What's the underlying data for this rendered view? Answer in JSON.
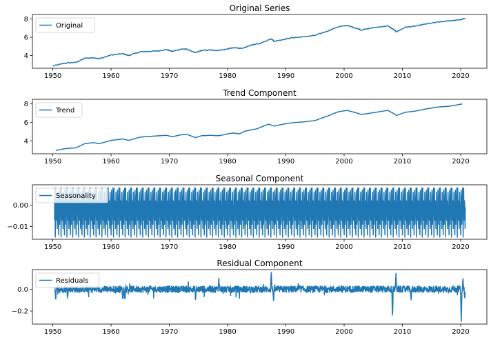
{
  "chart_data": [
    {
      "type": "line",
      "title": "Original Series",
      "xlabel": "",
      "ylabel": "",
      "xlim": [
        1946.5,
        2024.5
      ],
      "ylim": [
        2.6,
        8.5
      ],
      "xticks": [
        1950,
        1960,
        1970,
        1980,
        1990,
        2000,
        2010,
        2020
      ],
      "yticks": [
        4,
        6,
        8
      ],
      "ytick_labels": [
        "4",
        "6",
        "8"
      ],
      "legend": "upper-left",
      "grid": false,
      "series": [
        {
          "name": "Original",
          "color": "#1f77b4",
          "x": [
            1950.0,
            1952.0,
            1954.0,
            1955.5,
            1957.0,
            1958.0,
            1960.0,
            1962.0,
            1963.0,
            1965.0,
            1966.5,
            1968.0,
            1969.5,
            1970.5,
            1972.0,
            1973.0,
            1974.5,
            1975.5,
            1977.0,
            1978.0,
            1979.5,
            1980.5,
            1981.5,
            1982.5,
            1984.0,
            1985.5,
            1987.5,
            1988.0,
            1989.5,
            1991.0,
            1993.0,
            1995.0,
            1997.0,
            1999.0,
            2000.5,
            2002.0,
            2003.0,
            2005.0,
            2007.5,
            2008.5,
            2009.0,
            2010.5,
            2012.0,
            2014.0,
            2016.0,
            2018.0,
            2019.0,
            2020.2,
            2020.8
          ],
          "y": [
            2.85,
            3.15,
            3.25,
            3.7,
            3.75,
            3.65,
            4.05,
            4.2,
            4.0,
            4.4,
            4.45,
            4.5,
            4.65,
            4.45,
            4.7,
            4.7,
            4.3,
            4.55,
            4.6,
            4.55,
            4.65,
            4.8,
            4.85,
            4.75,
            5.15,
            5.3,
            5.85,
            5.55,
            5.75,
            5.95,
            6.05,
            6.2,
            6.65,
            7.15,
            7.3,
            7.0,
            6.8,
            7.05,
            7.25,
            6.85,
            6.6,
            7.1,
            7.2,
            7.45,
            7.65,
            7.8,
            7.85,
            7.95,
            8.1
          ]
        }
      ]
    },
    {
      "type": "line",
      "title": "Trend Component",
      "xlabel": "",
      "ylabel": "",
      "xlim": [
        1946.5,
        2024.5
      ],
      "ylim": [
        2.6,
        8.5
      ],
      "xticks": [
        1950,
        1960,
        1970,
        1980,
        1990,
        2000,
        2010,
        2020
      ],
      "yticks": [
        4,
        6,
        8
      ],
      "ytick_labels": [
        "4",
        "6",
        "8"
      ],
      "legend": "upper-left",
      "grid": false,
      "series": [
        {
          "name": "Trend",
          "color": "#1f77b4",
          "x": [
            1950.5,
            1952.0,
            1954.0,
            1955.5,
            1957.0,
            1958.0,
            1960.0,
            1962.0,
            1963.0,
            1965.0,
            1967.0,
            1969.5,
            1970.5,
            1972.0,
            1973.0,
            1974.5,
            1975.5,
            1977.0,
            1978.5,
            1980.0,
            1981.0,
            1982.0,
            1983.0,
            1985.0,
            1987.0,
            1988.0,
            1989.5,
            1991.0,
            1993.0,
            1995.0,
            1997.0,
            1999.0,
            2000.5,
            2002.0,
            2003.0,
            2005.0,
            2007.5,
            2008.5,
            2009.0,
            2010.5,
            2012.0,
            2014.0,
            2016.0,
            2018.0,
            2019.0,
            2020.3
          ],
          "y": [
            2.95,
            3.15,
            3.25,
            3.7,
            3.8,
            3.7,
            4.05,
            4.2,
            4.05,
            4.4,
            4.5,
            4.6,
            4.45,
            4.65,
            4.7,
            4.35,
            4.55,
            4.6,
            4.55,
            4.75,
            4.85,
            4.75,
            5.05,
            5.3,
            5.8,
            5.6,
            5.8,
            5.95,
            6.05,
            6.2,
            6.65,
            7.15,
            7.3,
            7.05,
            6.85,
            7.05,
            7.3,
            6.95,
            6.75,
            7.1,
            7.2,
            7.45,
            7.65,
            7.75,
            7.85,
            8.0
          ]
        }
      ]
    },
    {
      "type": "line",
      "title": "Seasonal Component",
      "xlabel": "",
      "ylabel": "",
      "xlim": [
        1946.5,
        2024.5
      ],
      "ylim": [
        -0.016,
        0.0095
      ],
      "xticks": [
        1950,
        1960,
        1970,
        1980,
        1990,
        2000,
        2010,
        2020
      ],
      "yticks": [
        0.0,
        -0.01
      ],
      "ytick_labels": [
        "0.00",
        "−0.01"
      ],
      "legend": "upper-left",
      "grid": false,
      "pattern": {
        "period_years": 1,
        "cycle_values": [
          0.008,
          -0.015,
          0.008,
          -0.007,
          0.002,
          -0.011,
          0.006,
          -0.004,
          -0.014,
          0.007,
          -0.009,
          0.001
        ],
        "x_start": 1950.3,
        "x_end": 2020.8,
        "first_value": -0.007,
        "last_value": -0.001
      },
      "series": [
        {
          "name": "Seasonality",
          "color": "#1f77b4"
        }
      ]
    },
    {
      "type": "line",
      "title": "Residual Component",
      "xlabel": "",
      "ylabel": "",
      "xlim": [
        1946.5,
        2024.5
      ],
      "ylim": [
        -0.32,
        0.18
      ],
      "xticks": [
        1950,
        1960,
        1970,
        1980,
        1990,
        2000,
        2010,
        2020
      ],
      "yticks": [
        0.0,
        -0.2
      ],
      "ytick_labels": [
        "0.0",
        "−0.2"
      ],
      "legend": "upper-left",
      "grid": false,
      "noise_amplitude": 0.03,
      "spikes": [
        {
          "x": 1950.5,
          "y": -0.11
        },
        {
          "x": 1962.0,
          "y": -0.1
        },
        {
          "x": 1974.5,
          "y": -0.1
        },
        {
          "x": 1978.5,
          "y": 0.1
        },
        {
          "x": 1987.5,
          "y": 0.17
        },
        {
          "x": 1987.9,
          "y": -0.12
        },
        {
          "x": 2008.3,
          "y": -0.27
        },
        {
          "x": 2008.9,
          "y": 0.15
        },
        {
          "x": 2011.5,
          "y": -0.1
        },
        {
          "x": 2020.1,
          "y": -0.31
        },
        {
          "x": 2020.4,
          "y": 0.1
        },
        {
          "x": 2020.7,
          "y": -0.09
        }
      ],
      "series": [
        {
          "name": "Residuals",
          "color": "#1f77b4"
        }
      ]
    }
  ]
}
